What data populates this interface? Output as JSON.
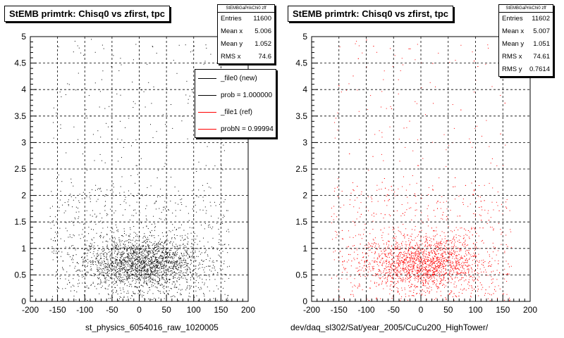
{
  "chart_data": [
    {
      "type": "scatter",
      "title": "StEMB primtrk: Chisq0 vs zfirst, tpc",
      "xlabel": "st_physics_6054016_raw_1020005",
      "ylabel": "",
      "xlim": [
        -200,
        200
      ],
      "ylim": [
        0,
        5
      ],
      "x_ticks": [
        "-200",
        "-150",
        "-100",
        "-50",
        "0",
        "50",
        "100",
        "150",
        "200"
      ],
      "y_ticks": [
        "0",
        "0.5",
        "1",
        "1.5",
        "2",
        "2.5",
        "3",
        "3.5",
        "4",
        "4.5",
        "5"
      ],
      "grid": true,
      "marker_color": "#000000",
      "series": [
        {
          "name": "_file0 (new)",
          "values": {
            "entries": 11600,
            "mean_x": 5.006,
            "mean_y": 1.052,
            "rms_x": 74.6
          }
        }
      ],
      "stats": {
        "header": "StEMBGaPrikChi0 zff",
        "rows": [
          {
            "label": "Entries",
            "value": "11600"
          },
          {
            "label": "Mean x",
            "value": "5.006"
          },
          {
            "label": "Mean y",
            "value": "1.052"
          },
          {
            "label": "RMS x",
            "value": "74.6"
          }
        ]
      },
      "legend": {
        "placement": "top-right",
        "entries": [
          {
            "label": "_file0 (new)",
            "color": "#000000"
          },
          {
            "label": "prob = 1.000000",
            "color": "#000000"
          },
          {
            "label": "_file1 (ref)",
            "color": "#ff0000"
          },
          {
            "label": "probN = 0.99994",
            "color": "#ff0000"
          }
        ]
      }
    },
    {
      "type": "scatter",
      "title": "StEMB primtrk: Chisq0 vs zfirst, tpc",
      "xlabel": "dev/daq_sl302/Sat/year_2005/CuCu200_HighTower/",
      "ylabel": "",
      "xlim": [
        -200,
        200
      ],
      "ylim": [
        0,
        5
      ],
      "x_ticks": [
        "-200",
        "-150",
        "-100",
        "-50",
        "0",
        "50",
        "100",
        "150",
        "200"
      ],
      "y_ticks": [
        "0",
        "0.5",
        "1",
        "1.5",
        "2",
        "2.5",
        "3",
        "3.5",
        "4",
        "4.5",
        "5"
      ],
      "grid": true,
      "marker_color": "#ff0000",
      "series": [
        {
          "name": "_file1 (ref)",
          "values": {
            "entries": 11602,
            "mean_x": 5.007,
            "mean_y": 1.051,
            "rms_x": 74.61,
            "rms_y": 0.7614
          }
        }
      ],
      "stats": {
        "header": "StEMBGaPrikChi0 zff",
        "rows": [
          {
            "label": "Entries",
            "value": "11602"
          },
          {
            "label": "Mean x",
            "value": "5.007"
          },
          {
            "label": "Mean y",
            "value": "1.051"
          },
          {
            "label": "RMS x",
            "value": "74.61"
          },
          {
            "label": "RMS y",
            "value": "0.7614"
          }
        ]
      }
    }
  ]
}
